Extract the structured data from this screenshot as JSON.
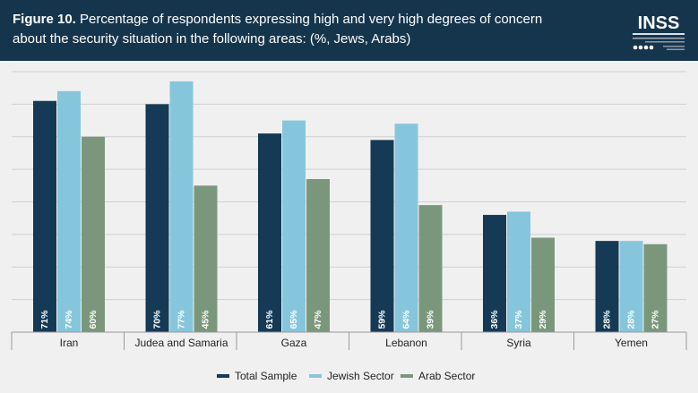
{
  "header": {
    "figure_label": "Figure 10.",
    "title": "Percentage of respondents expressing high and very high degrees of concern about the security situation in the following areas: (%, Jews, Arabs)",
    "logo_text": "INSS"
  },
  "colors": {
    "header_bg": "#15354d",
    "total": "#153a56",
    "jewish": "#86c6dc",
    "arab": "#7b977b",
    "gridline": "#cfcfcf",
    "background": "#f0f0f0"
  },
  "chart_data": {
    "type": "bar",
    "title": "Percentage of respondents expressing high and very high degrees of concern about the security situation in the following areas: (%, Jews, Arabs)",
    "categories": [
      "Iran",
      "Judea and Samaria",
      "Gaza",
      "Lebanon",
      "Syria",
      "Yemen"
    ],
    "series": [
      {
        "name": "Total Sample",
        "color": "#153a56",
        "values": [
          71,
          70,
          61,
          59,
          36,
          28
        ],
        "labels": [
          "71%",
          "70%",
          "61%",
          "59%",
          "36%",
          "28%"
        ]
      },
      {
        "name": "Jewish Sector",
        "color": "#86c6dc",
        "values": [
          74,
          77,
          65,
          64,
          37,
          28
        ],
        "labels": [
          "74%",
          "77%",
          "65%",
          "64%",
          "37%",
          "28%"
        ]
      },
      {
        "name": "Arab Sector",
        "color": "#7b977b",
        "values": [
          60,
          45,
          47,
          39,
          29,
          27
        ],
        "labels": [
          "60%",
          "45%",
          "47%",
          "39%",
          "29%",
          "27%"
        ]
      }
    ],
    "ylim": [
      0,
      80
    ],
    "grid": true,
    "legend_position": "bottom-center"
  }
}
